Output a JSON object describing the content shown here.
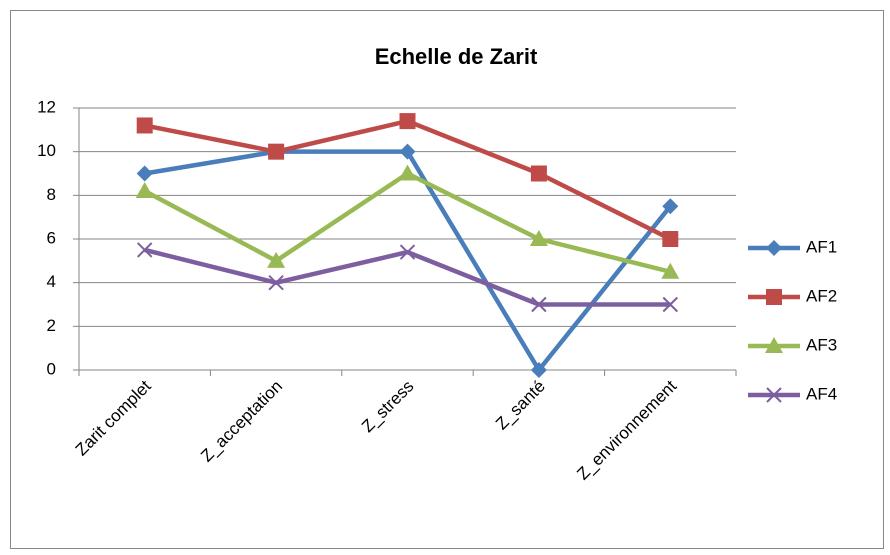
{
  "chart_data": {
    "type": "line",
    "title": "Echelle de Zarit",
    "categories": [
      "Zarit complet",
      "Z_acceptation",
      "Z_stress",
      "Z_santé",
      "Z_environnement"
    ],
    "series": [
      {
        "name": "AF1",
        "color": "#4a7ebb",
        "marker": "diamond",
        "values": [
          9,
          10,
          10,
          0,
          7.5
        ]
      },
      {
        "name": "AF2",
        "color": "#be4b48",
        "marker": "square",
        "values": [
          11.2,
          10,
          11.4,
          9,
          6
        ]
      },
      {
        "name": "AF3",
        "color": "#98b954",
        "marker": "triangle",
        "values": [
          8.2,
          5,
          9,
          6,
          4.5
        ]
      },
      {
        "name": "AF4",
        "color": "#7d5fa0",
        "marker": "x",
        "values": [
          5.5,
          4,
          5.4,
          3,
          3
        ]
      }
    ],
    "ylim": [
      0,
      12
    ],
    "yticks": [
      0,
      2,
      4,
      6,
      8,
      10,
      12
    ],
    "grid": true,
    "legend": "right"
  }
}
